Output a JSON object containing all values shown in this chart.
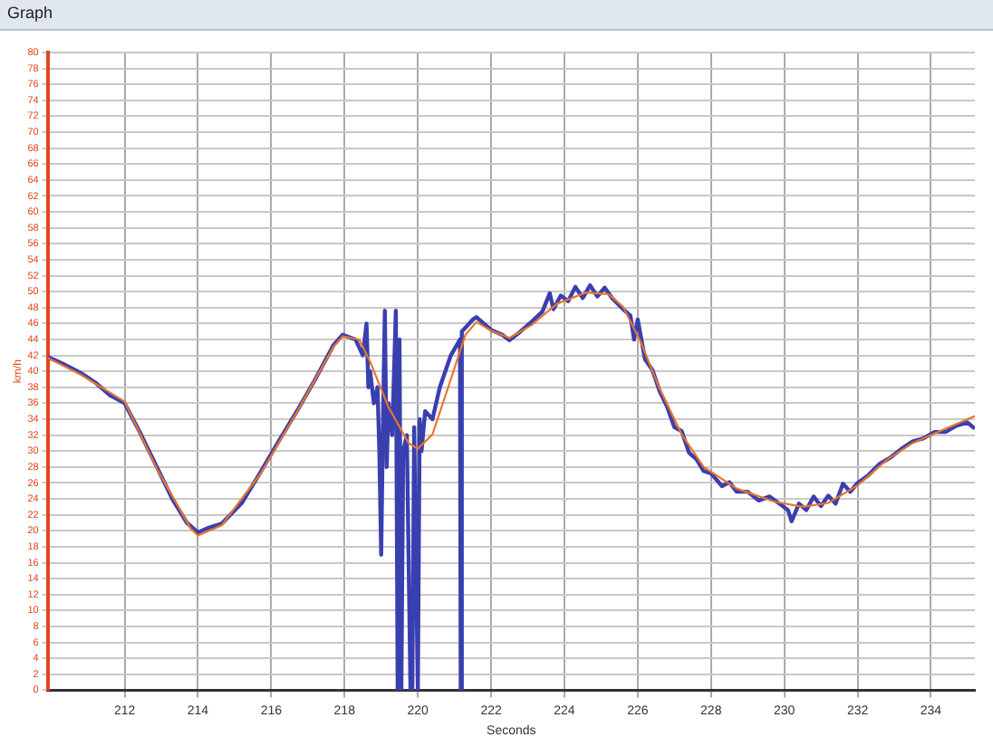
{
  "chart_data": {
    "type": "line",
    "title": "Graph",
    "xlabel": "Seconds",
    "ylabel": "km/h",
    "xlim": [
      209.9,
      235.2
    ],
    "xticks": [
      212,
      214,
      216,
      218,
      220,
      222,
      224,
      226,
      228,
      230,
      232,
      234
    ],
    "ylim": [
      0,
      80
    ],
    "yticks": [
      0,
      2,
      4,
      6,
      8,
      10,
      12,
      14,
      16,
      18,
      20,
      22,
      24,
      26,
      28,
      30,
      32,
      34,
      36,
      38,
      40,
      42,
      44,
      46,
      48,
      50,
      52,
      54,
      56,
      58,
      60,
      62,
      64,
      66,
      68,
      70,
      72,
      74,
      76,
      78,
      80
    ],
    "grid": true,
    "marker": "none",
    "line_style": "solid",
    "series": [
      {
        "color": "#3a3fb0",
        "x": [
          209.9,
          210.3,
          210.8,
          211.2,
          211.6,
          212,
          212.4,
          212.9,
          213.3,
          213.7,
          214,
          214.3,
          214.65,
          215.2,
          215.7,
          216.2,
          216.7,
          217.2,
          217.7,
          217.95,
          218.3,
          218.5,
          218.6,
          218.65,
          218.7,
          218.8,
          218.9,
          218.95,
          219.0,
          219.05,
          219.1,
          219.15,
          219.2,
          219.3,
          219.4,
          219.45,
          219.5,
          219.55,
          219.6,
          219.7,
          219.8,
          219.85,
          219.9,
          220.0,
          220.05,
          220.1,
          220.2,
          220.4,
          220.6,
          220.9,
          221.15,
          221.17,
          221.2,
          221.5,
          221.6,
          222,
          222.3,
          222.5,
          222.8,
          223.1,
          223.4,
          223.6,
          223.7,
          223.9,
          224.1,
          224.3,
          224.5,
          224.7,
          224.9,
          225.1,
          225.3,
          225.6,
          225.8,
          225.9,
          226.0,
          226.2,
          226.4,
          226.6,
          226.8,
          227.0,
          227.2,
          227.4,
          227.6,
          227.8,
          228.0,
          228.3,
          228.5,
          228.7,
          229.0,
          229.3,
          229.6,
          229.9,
          230.1,
          230.2,
          230.4,
          230.6,
          230.8,
          231.0,
          231.2,
          231.4,
          231.6,
          231.8,
          232.0,
          232.3,
          232.6,
          232.9,
          233.2,
          233.5,
          233.8,
          234.1,
          234.4,
          234.7,
          235.0,
          235.2
        ],
        "values": [
          41.8,
          41,
          39.8,
          38.6,
          37,
          36,
          32.5,
          27.8,
          24,
          21,
          19.8,
          20.4,
          20.9,
          23.5,
          27.3,
          31.2,
          35,
          39,
          43.3,
          44.6,
          44,
          42,
          46,
          38,
          40,
          36,
          38,
          30,
          17,
          34,
          47.6,
          28,
          36,
          32,
          47.6,
          0,
          44,
          0,
          30,
          32,
          0,
          0,
          33,
          0,
          34,
          30,
          35,
          34,
          38,
          42,
          44,
          0,
          45,
          46.5,
          46.8,
          45.2,
          44.6,
          43.9,
          45,
          46.2,
          47.5,
          49.8,
          47.8,
          49.5,
          48.8,
          50.6,
          49.2,
          50.8,
          49.4,
          50.5,
          49.2,
          47.8,
          47,
          44,
          46.5,
          41.5,
          40.2,
          37.5,
          35.6,
          33,
          32.5,
          29.8,
          29,
          27.5,
          27.2,
          25.6,
          26.1,
          24.9,
          24.9,
          23.8,
          24.3,
          23.3,
          22.6,
          21.2,
          23.4,
          22.6,
          24.3,
          23.1,
          24.4,
          23.4,
          25.9,
          24.9,
          26,
          27,
          28.4,
          29.2,
          30.3,
          31.2,
          31.6,
          32.4,
          32.4,
          33.2,
          33.6,
          32.8
        ]
      },
      {
        "color": "#e8752a",
        "x": [
          209.9,
          210.8,
          212,
          212.9,
          213.8,
          214,
          214.65,
          215.7,
          216.7,
          217.7,
          217.95,
          218.4,
          218.7,
          219.2,
          219.75,
          220,
          220.4,
          220.9,
          221.3,
          221.6,
          222,
          222.5,
          223.1,
          223.8,
          224.6,
          225.2,
          225.6,
          226.1,
          226.6,
          227.2,
          227.8,
          228.7,
          229.7,
          230.5,
          231.2,
          232,
          232.8,
          233.5,
          234.3,
          235.2
        ],
        "values": [
          41.7,
          39.6,
          36.2,
          27.6,
          20.3,
          19.4,
          20.7,
          27.1,
          34.9,
          43.1,
          44.4,
          44,
          41.2,
          35.5,
          31,
          30.3,
          32.1,
          39,
          44.6,
          46.2,
          45.1,
          44.2,
          45.8,
          48.5,
          49.9,
          49.7,
          48.1,
          43.5,
          37.8,
          32.1,
          28,
          25.3,
          23.7,
          23,
          23.5,
          25.7,
          28.9,
          31,
          32.6,
          34.4
        ]
      }
    ]
  }
}
